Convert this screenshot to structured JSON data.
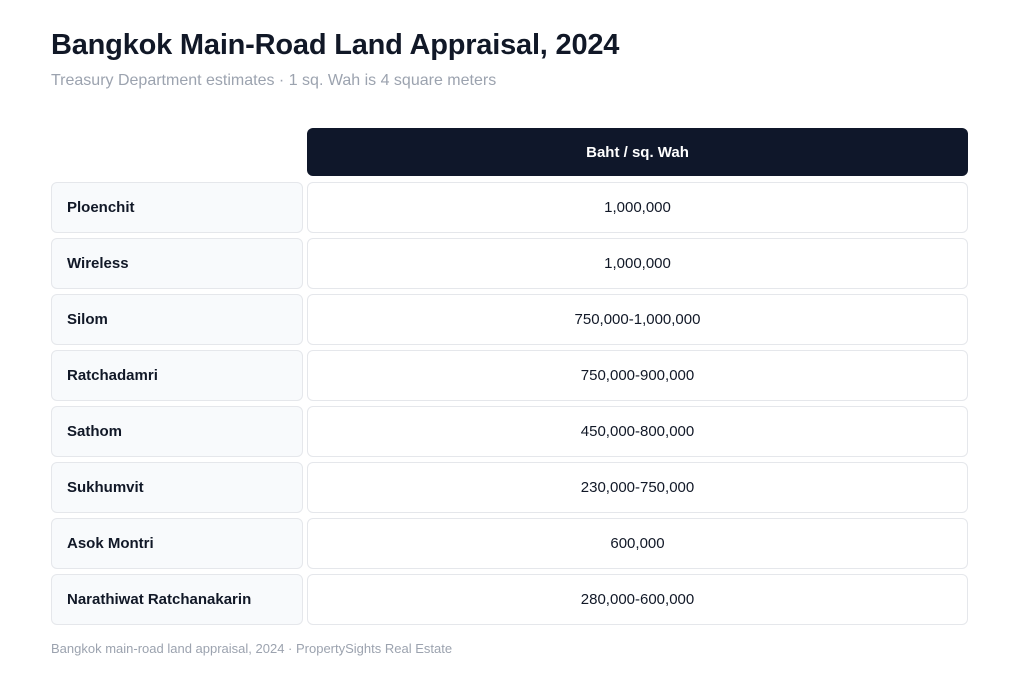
{
  "title": "Bangkok Main-Road Land Appraisal, 2024",
  "subtitle": "Treasury Department estimates · 1 sq. Wah is 4 square meters",
  "footer": "Bangkok main-road land appraisal, 2024 · PropertySights Real Estate",
  "colors": {
    "header_bg": "#0f172a",
    "header_text": "#ffffff",
    "label_bg": "#f8fafc",
    "border": "#e5e7eb",
    "muted_text": "#9ca3af"
  },
  "chart_data": {
    "type": "table",
    "title": "Bangkok Main-Road Land Appraisal, 2024",
    "subtitle": "Treasury Department estimates · 1 sq. Wah is 4 square meters",
    "columns": [
      "Baht / sq. Wah"
    ],
    "rows": [
      {
        "label": "Ploenchit",
        "value": "1,000,000"
      },
      {
        "label": "Wireless",
        "value": "1,000,000"
      },
      {
        "label": "Silom",
        "value": "750,000-1,000,000"
      },
      {
        "label": "Ratchadamri",
        "value": "750,000-900,000"
      },
      {
        "label": "Sathom",
        "value": "450,000-800,000"
      },
      {
        "label": "Sukhumvit",
        "value": "230,000-750,000"
      },
      {
        "label": "Asok Montri",
        "value": "600,000"
      },
      {
        "label": "Narathiwat Ratchanakarin",
        "value": "280,000-600,000"
      }
    ]
  }
}
